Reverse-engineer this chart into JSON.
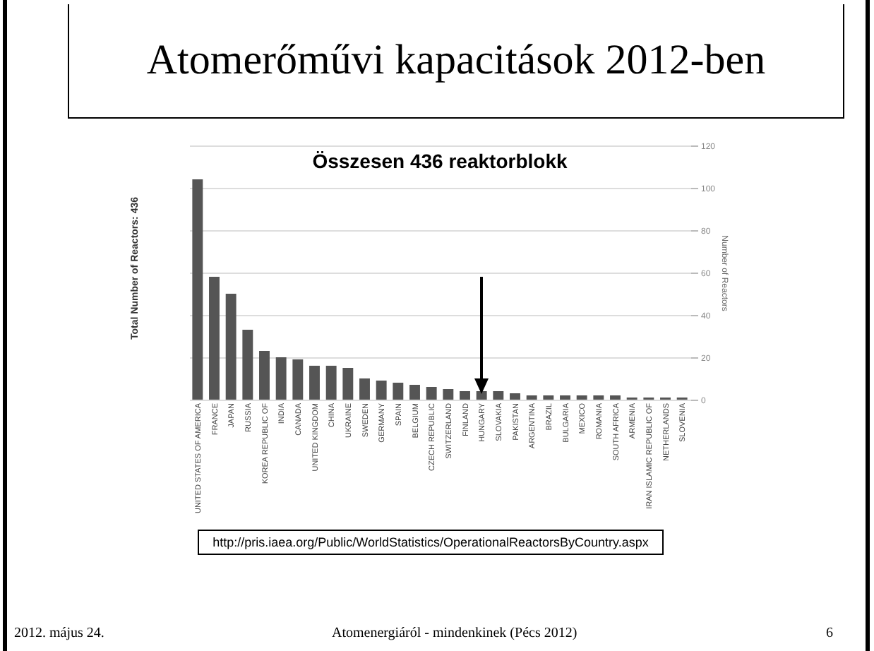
{
  "chart_data": {
    "type": "bar",
    "title": "Atomerőművi kapacitások 2012-ben",
    "subtitle": "Összesen 436 reaktorblokk",
    "ylabel": "Total Number of Reactors: 436",
    "y2label": "Number of Reactors",
    "categories": [
      "UNITED STATES OF AMERICA",
      "FRANCE",
      "JAPAN",
      "RUSSIA",
      "KOREA REPUBLIC OF",
      "INDIA",
      "CANADA",
      "UNITED KINGDOM",
      "CHINA",
      "UKRAINE",
      "SWEDEN",
      "GERMANY",
      "SPAIN",
      "BELGIUM",
      "CZECH REPUBLIC",
      "SWITZERLAND",
      "FINLAND",
      "HUNGARY",
      "SLOVAKIA",
      "PAKISTAN",
      "ARGENTINA",
      "BRAZIL",
      "BULGARIA",
      "MEXICO",
      "ROMANIA",
      "SOUTH AFRICA",
      "ARMENIA",
      "IRAN ISLAMIC REPUBLIC OF",
      "NETHERLANDS",
      "SLOVENIA"
    ],
    "series": [
      {
        "axis": "y2",
        "color": "#555555",
        "values": [
          104,
          58,
          50,
          33,
          23,
          20,
          19,
          16,
          16,
          15,
          10,
          9,
          8,
          7,
          6,
          5,
          4,
          4,
          4,
          3,
          2,
          2,
          2,
          2,
          2,
          2,
          1,
          1,
          1,
          1
        ]
      }
    ],
    "y2lim": [
      0,
      120
    ],
    "y2ticks": [
      0,
      20,
      40,
      60,
      80,
      100,
      120
    ],
    "grid": "y",
    "annotations": [
      "http://pris.iaea.org/Public/WorldStatistics/OperationalReactorsByCountry.aspx",
      "2012. május 24.",
      "Atomenergiáról - mindenkinek (Pécs 2012)",
      "6"
    ]
  }
}
